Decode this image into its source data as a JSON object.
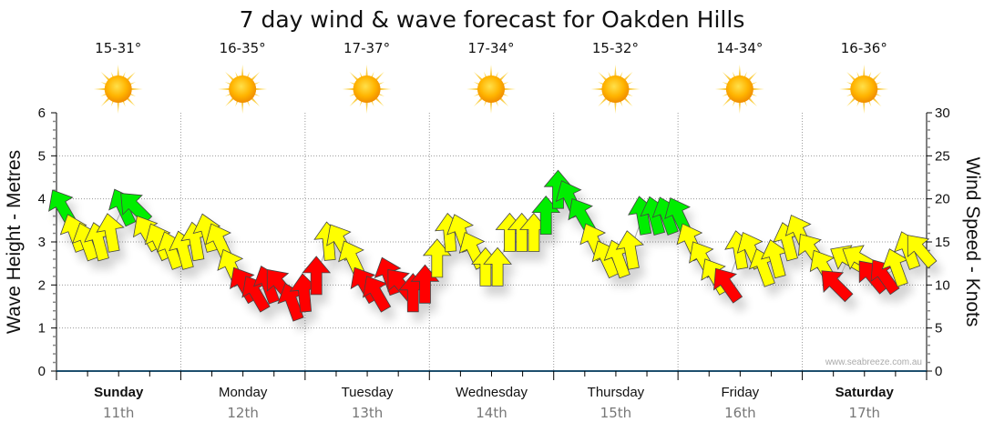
{
  "chart_data": {
    "type": "scatter",
    "title": "7 day wind & wave forecast for Oakden Hills",
    "y_left_label": "Wave Height - Metres",
    "y_right_label": "Wind Speed - Knots",
    "y_left_range": [
      0,
      6
    ],
    "y_right_range": [
      0,
      30
    ],
    "y_left_ticks": [
      "0",
      "1",
      "2",
      "3",
      "4",
      "5",
      "6"
    ],
    "y_right_ticks": [
      "0",
      "5",
      "10",
      "15",
      "20",
      "25",
      "30"
    ],
    "grid": true,
    "watermark": "www.seabreeze.com.au",
    "days": [
      {
        "name": "Sunday",
        "date": "11th",
        "bold": true,
        "temp": "15-31°",
        "weather_icon": "sun-icon"
      },
      {
        "name": "Monday",
        "date": "12th",
        "bold": false,
        "temp": "16-35°",
        "weather_icon": "sun-icon"
      },
      {
        "name": "Tuesday",
        "date": "13th",
        "bold": false,
        "temp": "17-37°",
        "weather_icon": "sun-icon"
      },
      {
        "name": "Wednesday",
        "date": "14th",
        "bold": false,
        "temp": "17-34°",
        "weather_icon": "sun-icon"
      },
      {
        "name": "Thursday",
        "date": "15th",
        "bold": false,
        "temp": "15-32°",
        "weather_icon": "sun-icon"
      },
      {
        "name": "Friday",
        "date": "16th",
        "bold": false,
        "temp": "14-34°",
        "weather_icon": "sun-icon"
      },
      {
        "name": "Saturday",
        "date": "17th",
        "bold": true,
        "temp": "16-36°",
        "weather_icon": "sun-icon"
      }
    ],
    "wind_colors": {
      "light": "#ff0000",
      "moderate": "#ffff00",
      "strong": "#00ee00"
    },
    "wind_series": {
      "name": "Wind Speed (knots)",
      "interval_hours": 3,
      "points": [
        {
          "speed": 19,
          "dir": -30,
          "cls": "strong"
        },
        {
          "speed": 16,
          "dir": -20,
          "cls": "moderate"
        },
        {
          "speed": 15,
          "dir": -20,
          "cls": "moderate"
        },
        {
          "speed": 15,
          "dir": -15,
          "cls": "moderate"
        },
        {
          "speed": 16,
          "dir": -10,
          "cls": "moderate"
        },
        {
          "speed": 19,
          "dir": -25,
          "cls": "strong"
        },
        {
          "speed": 19,
          "dir": -45,
          "cls": "strong"
        },
        {
          "speed": 16,
          "dir": -30,
          "cls": "moderate"
        },
        {
          "speed": 15,
          "dir": -25,
          "cls": "moderate"
        },
        {
          "speed": 14,
          "dir": -20,
          "cls": "moderate"
        },
        {
          "speed": 14,
          "dir": -15,
          "cls": "moderate"
        },
        {
          "speed": 15,
          "dir": -10,
          "cls": "moderate"
        },
        {
          "speed": 16,
          "dir": -15,
          "cls": "moderate"
        },
        {
          "speed": 15,
          "dir": -25,
          "cls": "moderate"
        },
        {
          "speed": 12,
          "dir": -25,
          "cls": "moderate"
        },
        {
          "speed": 10,
          "dir": -30,
          "cls": "light"
        },
        {
          "speed": 9,
          "dir": -30,
          "cls": "light"
        },
        {
          "speed": 10,
          "dir": -20,
          "cls": "light"
        },
        {
          "speed": 10,
          "dir": -40,
          "cls": "light"
        },
        {
          "speed": 8,
          "dir": -20,
          "cls": "light"
        },
        {
          "speed": 9,
          "dir": -5,
          "cls": "light"
        },
        {
          "speed": 11,
          "dir": 0,
          "cls": "light"
        },
        {
          "speed": 15,
          "dir": -5,
          "cls": "moderate"
        },
        {
          "speed": 15,
          "dir": -30,
          "cls": "moderate"
        },
        {
          "speed": 13,
          "dir": -25,
          "cls": "moderate"
        },
        {
          "speed": 10,
          "dir": -30,
          "cls": "light"
        },
        {
          "speed": 9,
          "dir": -30,
          "cls": "light"
        },
        {
          "speed": 11,
          "dir": -20,
          "cls": "light"
        },
        {
          "speed": 10,
          "dir": -40,
          "cls": "light"
        },
        {
          "speed": 9,
          "dir": 0,
          "cls": "light"
        },
        {
          "speed": 10,
          "dir": 0,
          "cls": "light"
        },
        {
          "speed": 13,
          "dir": 0,
          "cls": "moderate"
        },
        {
          "speed": 16,
          "dir": -5,
          "cls": "moderate"
        },
        {
          "speed": 16,
          "dir": -20,
          "cls": "moderate"
        },
        {
          "speed": 14,
          "dir": -25,
          "cls": "moderate"
        },
        {
          "speed": 12,
          "dir": 0,
          "cls": "moderate"
        },
        {
          "speed": 12,
          "dir": 0,
          "cls": "moderate"
        },
        {
          "speed": 16,
          "dir": 0,
          "cls": "moderate"
        },
        {
          "speed": 16,
          "dir": 0,
          "cls": "moderate"
        },
        {
          "speed": 16,
          "dir": 0,
          "cls": "moderate"
        },
        {
          "speed": 18,
          "dir": 0,
          "cls": "strong"
        },
        {
          "speed": 21,
          "dir": 0,
          "cls": "strong"
        },
        {
          "speed": 20,
          "dir": -25,
          "cls": "strong"
        },
        {
          "speed": 18,
          "dir": -30,
          "cls": "strong"
        },
        {
          "speed": 15,
          "dir": -25,
          "cls": "moderate"
        },
        {
          "speed": 13,
          "dir": -25,
          "cls": "moderate"
        },
        {
          "speed": 13,
          "dir": -20,
          "cls": "moderate"
        },
        {
          "speed": 14,
          "dir": -10,
          "cls": "moderate"
        },
        {
          "speed": 18,
          "dir": -10,
          "cls": "strong"
        },
        {
          "speed": 18,
          "dir": -15,
          "cls": "strong"
        },
        {
          "speed": 18,
          "dir": -20,
          "cls": "strong"
        },
        {
          "speed": 18,
          "dir": -25,
          "cls": "strong"
        },
        {
          "speed": 15,
          "dir": -25,
          "cls": "moderate"
        },
        {
          "speed": 13,
          "dir": -30,
          "cls": "moderate"
        },
        {
          "speed": 11,
          "dir": -30,
          "cls": "moderate"
        },
        {
          "speed": 10,
          "dir": -35,
          "cls": "light"
        },
        {
          "speed": 14,
          "dir": -10,
          "cls": "moderate"
        },
        {
          "speed": 14,
          "dir": -25,
          "cls": "moderate"
        },
        {
          "speed": 12,
          "dir": -20,
          "cls": "moderate"
        },
        {
          "speed": 13,
          "dir": -15,
          "cls": "moderate"
        },
        {
          "speed": 15,
          "dir": -15,
          "cls": "moderate"
        },
        {
          "speed": 16,
          "dir": -25,
          "cls": "moderate"
        },
        {
          "speed": 14,
          "dir": -35,
          "cls": "moderate"
        },
        {
          "speed": 12,
          "dir": -30,
          "cls": "moderate"
        },
        {
          "speed": 10,
          "dir": -45,
          "cls": "light"
        },
        {
          "speed": 13,
          "dir": -60,
          "cls": "moderate"
        },
        {
          "speed": 13,
          "dir": -60,
          "cls": "moderate"
        },
        {
          "speed": 11,
          "dir": -40,
          "cls": "light"
        },
        {
          "speed": 11,
          "dir": -35,
          "cls": "light"
        },
        {
          "speed": 12,
          "dir": -20,
          "cls": "moderate"
        },
        {
          "speed": 14,
          "dir": -20,
          "cls": "moderate"
        },
        {
          "speed": 14,
          "dir": -40,
          "cls": "moderate"
        }
      ]
    }
  }
}
